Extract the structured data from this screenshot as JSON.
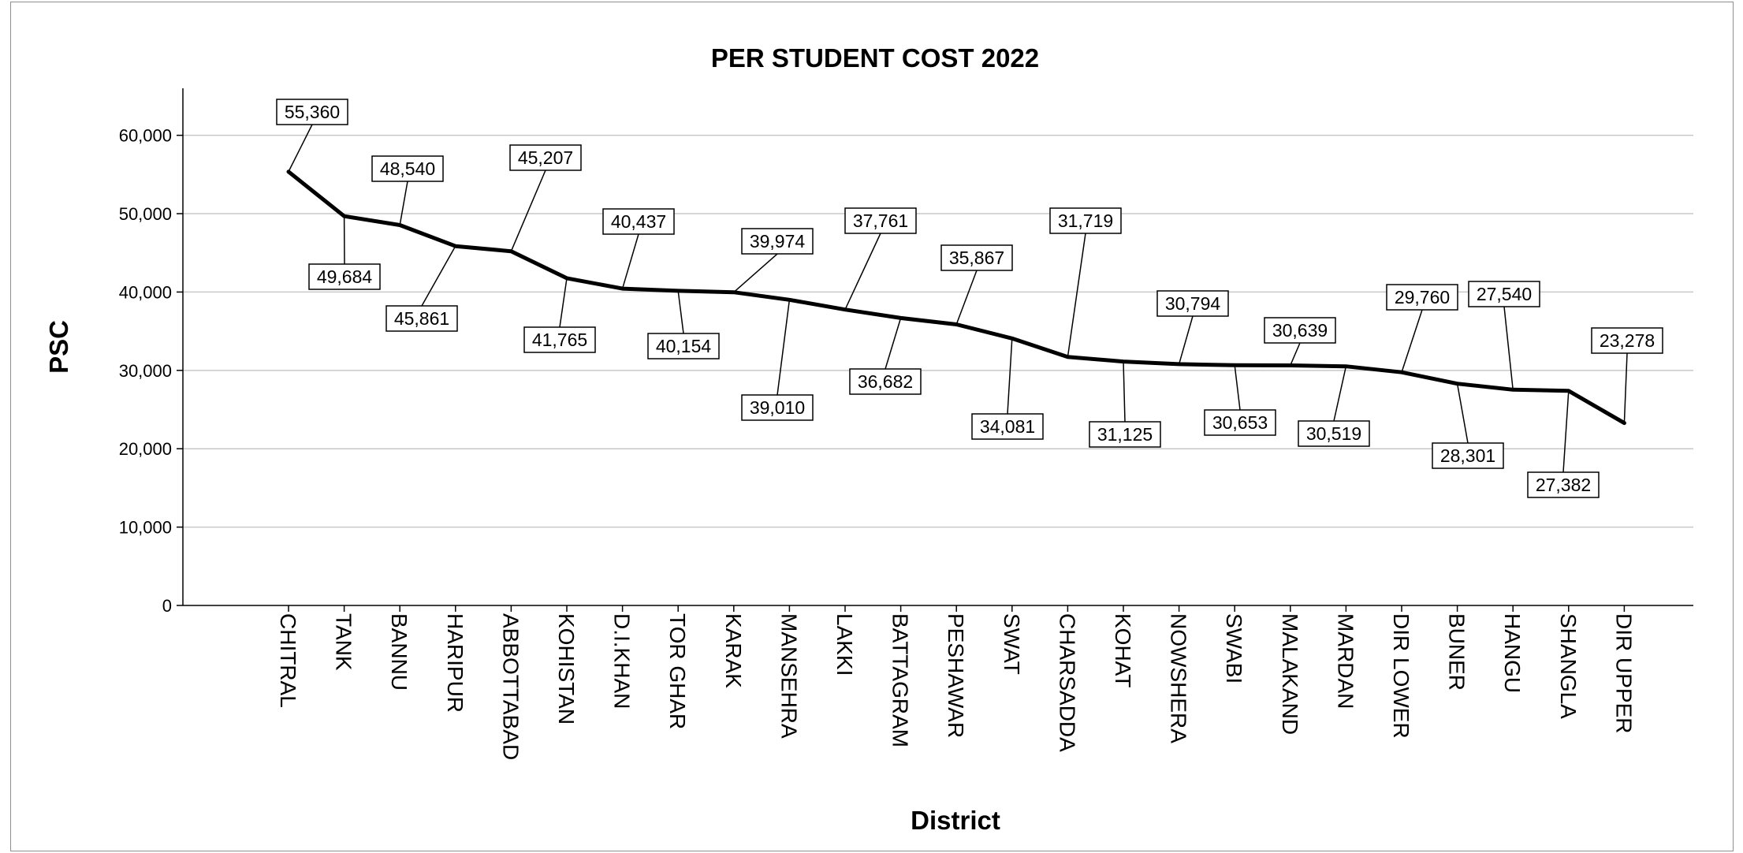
{
  "chart_data": {
    "type": "line",
    "title": "PER STUDENT COST 2022",
    "xlabel": "District",
    "ylabel": "PSC",
    "ylim": [
      0,
      66000
    ],
    "yticks": [
      0,
      10000,
      20000,
      30000,
      40000,
      50000,
      60000
    ],
    "ytick_labels": [
      "0",
      "10,000",
      "20,000",
      "30,000",
      "40,000",
      "50,000",
      "60,000"
    ],
    "grid": true,
    "legend": "none",
    "line_color": "#000000",
    "categories": [
      "CHITRAL",
      "TANK",
      "BANNU",
      "HARIPUR",
      "ABBOTTABAD",
      "KOHISTAN",
      "D.I.KHAN",
      "TOR GHAR",
      "KARAK",
      "MANSEHRA",
      "LAKKI",
      "BATTAGRAM",
      "PESHAWAR",
      "SWAT",
      "CHARSADDA",
      "KOHAT",
      "NOWSHERA",
      "SWABI",
      "MALAKAND",
      "MARDAN",
      "DIR LOWER",
      "BUNER",
      "HANGU",
      "SHANGLA",
      "DIR UPPER"
    ],
    "values": [
      55360,
      49684,
      48540,
      45861,
      45207,
      41765,
      40437,
      40154,
      39974,
      39010,
      37761,
      36682,
      35867,
      34081,
      31719,
      31125,
      30794,
      30653,
      30639,
      30519,
      29760,
      28301,
      27540,
      27382,
      23278
    ],
    "data_labels": [
      "55,360",
      "49,684",
      "48,540",
      "45,861",
      "45,207",
      "41,765",
      "40,437",
      "40,154",
      "39,974",
      "39,010",
      "37,761",
      "36,682",
      "35,867",
      "34,081",
      "31,719",
      "31,125",
      "30,794",
      "30,653",
      "30,639",
      "30,519",
      "29,760",
      "28,301",
      "27,540",
      "27,382",
      "23,278"
    ]
  }
}
